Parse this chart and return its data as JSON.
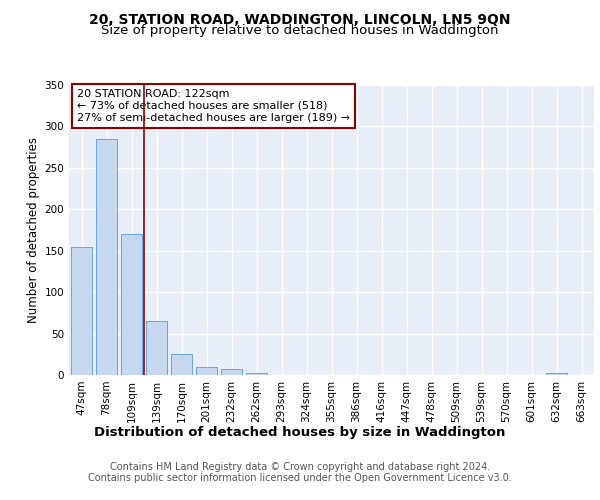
{
  "title1": "20, STATION ROAD, WADDINGTON, LINCOLN, LN5 9QN",
  "title2": "Size of property relative to detached houses in Waddington",
  "xlabel": "Distribution of detached houses by size in Waddington",
  "ylabel": "Number of detached properties",
  "footer1": "Contains HM Land Registry data © Crown copyright and database right 2024.",
  "footer2": "Contains public sector information licensed under the Open Government Licence v3.0.",
  "categories": [
    "47sqm",
    "78sqm",
    "109sqm",
    "139sqm",
    "170sqm",
    "201sqm",
    "232sqm",
    "262sqm",
    "293sqm",
    "324sqm",
    "355sqm",
    "386sqm",
    "416sqm",
    "447sqm",
    "478sqm",
    "509sqm",
    "539sqm",
    "570sqm",
    "601sqm",
    "632sqm",
    "663sqm"
  ],
  "values": [
    155,
    285,
    170,
    65,
    25,
    10,
    7,
    2,
    0,
    0,
    0,
    0,
    0,
    0,
    0,
    0,
    0,
    0,
    0,
    2,
    0
  ],
  "bar_color": "#c5d8ef",
  "bar_edge_color": "#5b9bd5",
  "vline_x_pos": 2.5,
  "vline_color": "#8b0000",
  "annotation_line1": "20 STATION ROAD: 122sqm",
  "annotation_line2": "← 73% of detached houses are smaller (518)",
  "annotation_line3": "27% of semi-detached houses are larger (189) →",
  "annotation_box_facecolor": "white",
  "annotation_box_edgecolor": "#8b0000",
  "ylim": [
    0,
    350
  ],
  "yticks": [
    0,
    50,
    100,
    150,
    200,
    250,
    300,
    350
  ],
  "title1_fontsize": 10,
  "title2_fontsize": 9.5,
  "xlabel_fontsize": 9.5,
  "ylabel_fontsize": 8.5,
  "tick_fontsize": 7.5,
  "annotation_fontsize": 8,
  "footer_fontsize": 7,
  "background_color": "#e8eef8"
}
